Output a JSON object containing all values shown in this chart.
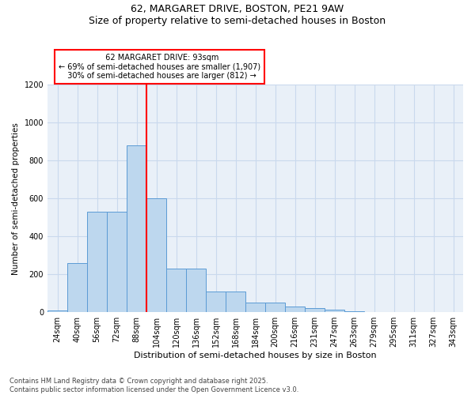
{
  "title_line1": "62, MARGARET DRIVE, BOSTON, PE21 9AW",
  "title_line2": "Size of property relative to semi-detached houses in Boston",
  "xlabel": "Distribution of semi-detached houses by size in Boston",
  "ylabel": "Number of semi-detached properties",
  "property_label": "62 MARGARET DRIVE: 93sqm",
  "pct_smaller": 69,
  "count_smaller": 1907,
  "pct_larger": 30,
  "count_larger": 812,
  "bin_labels": [
    "24sqm",
    "40sqm",
    "56sqm",
    "72sqm",
    "88sqm",
    "104sqm",
    "120sqm",
    "136sqm",
    "152sqm",
    "168sqm",
    "184sqm",
    "200sqm",
    "216sqm",
    "231sqm",
    "247sqm",
    "263sqm",
    "279sqm",
    "295sqm",
    "311sqm",
    "327sqm",
    "343sqm"
  ],
  "bin_edges": [
    16,
    32,
    48,
    64,
    80,
    96,
    112,
    128,
    144,
    160,
    176,
    192,
    208,
    224,
    240,
    256,
    272,
    288,
    304,
    320,
    336,
    352
  ],
  "bar_values": [
    10,
    260,
    530,
    530,
    880,
    600,
    230,
    230,
    110,
    110,
    50,
    50,
    30,
    20,
    15,
    5,
    0,
    0,
    0,
    0,
    0
  ],
  "bar_color": "#BDD7EE",
  "bar_edge_color": "#5B9BD5",
  "vline_color": "red",
  "vline_x": 96,
  "ylim": [
    0,
    1200
  ],
  "yticks": [
    0,
    200,
    400,
    600,
    800,
    1000,
    1200
  ],
  "grid_color": "#C9D9ED",
  "background_color": "#E9F0F8",
  "footnote1": "Contains HM Land Registry data © Crown copyright and database right 2025.",
  "footnote2": "Contains public sector information licensed under the Open Government Licence v3.0."
}
